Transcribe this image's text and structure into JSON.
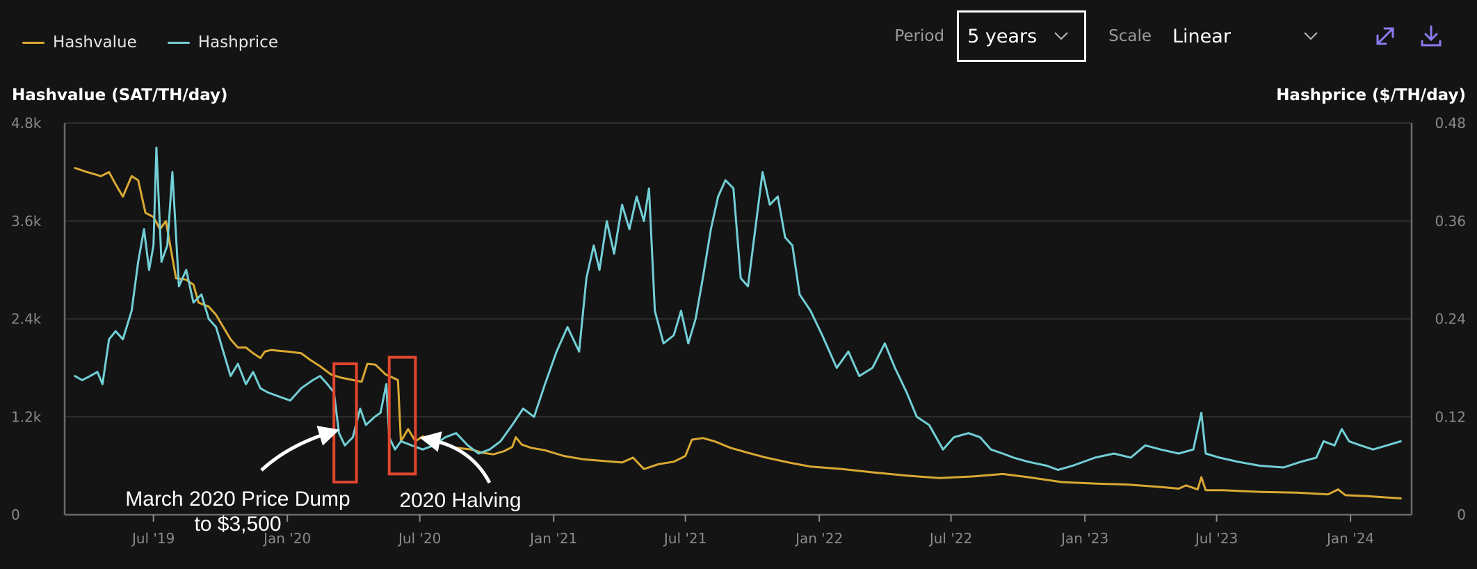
{
  "legend": [
    {
      "label": "Hashvalue",
      "color": "#d9a933"
    },
    {
      "label": "Hashprice",
      "color": "#72cfd6"
    }
  ],
  "controls": {
    "period_label": "Period",
    "period_value": "5 years",
    "scale_label": "Scale",
    "scale_value": "Linear",
    "icons": [
      "chevron-down-icon",
      "expand-icon",
      "download-icon"
    ],
    "accent_color": "#8a7cf0"
  },
  "chart_data": {
    "type": "line",
    "ylabel": "Hashvalue (SAT/TH/day)",
    "y2label": "Hashprice ($/TH/day)",
    "ylim": [
      0,
      4800
    ],
    "y2lim": [
      0,
      0.48
    ],
    "yticks": [
      "0",
      "1.2k",
      "2.4k",
      "3.6k",
      "4.8k"
    ],
    "y2ticks": [
      "0",
      "0.12",
      "0.24",
      "0.36",
      "0.48"
    ],
    "xlim": [
      "2019-03-01",
      "2024-03-25"
    ],
    "xticks": [
      {
        "label": "Jul '19",
        "date": "2019-07-01"
      },
      {
        "label": "Jan '20",
        "date": "2020-01-01"
      },
      {
        "label": "Jul '20",
        "date": "2020-07-01"
      },
      {
        "label": "Jan '21",
        "date": "2021-01-01"
      },
      {
        "label": "Jul '21",
        "date": "2021-07-01"
      },
      {
        "label": "Jan '22",
        "date": "2022-01-01"
      },
      {
        "label": "Jul '22",
        "date": "2022-07-01"
      },
      {
        "label": "Jan '23",
        "date": "2023-01-01"
      },
      {
        "label": "Jul '23",
        "date": "2023-07-01"
      },
      {
        "label": "Jan '24",
        "date": "2024-01-01"
      }
    ],
    "grid": true,
    "legend_position": "top-left",
    "series": [
      {
        "name": "Hashvalue",
        "axis": "left",
        "color": "#d9a933",
        "points": [
          [
            "2019-03-15",
            4250
          ],
          [
            "2019-04-01",
            4200
          ],
          [
            "2019-04-20",
            4150
          ],
          [
            "2019-05-01",
            4200
          ],
          [
            "2019-05-10",
            4050
          ],
          [
            "2019-05-20",
            3900
          ],
          [
            "2019-06-01",
            4150
          ],
          [
            "2019-06-10",
            4100
          ],
          [
            "2019-06-20",
            3700
          ],
          [
            "2019-07-01",
            3650
          ],
          [
            "2019-07-10",
            3500
          ],
          [
            "2019-07-18",
            3600
          ],
          [
            "2019-07-25",
            3250
          ],
          [
            "2019-08-01",
            2900
          ],
          [
            "2019-08-15",
            2880
          ],
          [
            "2019-08-25",
            2820
          ],
          [
            "2019-09-01",
            2600
          ],
          [
            "2019-09-15",
            2550
          ],
          [
            "2019-09-25",
            2450
          ],
          [
            "2019-10-05",
            2300
          ],
          [
            "2019-10-15",
            2150
          ],
          [
            "2019-10-25",
            2050
          ],
          [
            "2019-11-05",
            2050
          ],
          [
            "2019-11-15",
            1980
          ],
          [
            "2019-11-25",
            1920
          ],
          [
            "2019-12-01",
            2000
          ],
          [
            "2019-12-10",
            2020
          ],
          [
            "2019-12-20",
            2010
          ],
          [
            "2020-01-01",
            2000
          ],
          [
            "2020-01-20",
            1980
          ],
          [
            "2020-02-01",
            1900
          ],
          [
            "2020-02-15",
            1820
          ],
          [
            "2020-03-01",
            1720
          ],
          [
            "2020-03-15",
            1680
          ],
          [
            "2020-04-01",
            1650
          ],
          [
            "2020-04-12",
            1630
          ],
          [
            "2020-04-20",
            1850
          ],
          [
            "2020-05-01",
            1840
          ],
          [
            "2020-05-08",
            1780
          ],
          [
            "2020-05-15",
            1720
          ],
          [
            "2020-05-25",
            1680
          ],
          [
            "2020-06-01",
            1650
          ],
          [
            "2020-06-05",
            900
          ],
          [
            "2020-06-15",
            1050
          ],
          [
            "2020-06-25",
            900
          ],
          [
            "2020-07-05",
            960
          ],
          [
            "2020-07-15",
            930
          ],
          [
            "2020-08-01",
            870
          ],
          [
            "2020-08-20",
            820
          ],
          [
            "2020-09-10",
            800
          ],
          [
            "2020-09-25",
            760
          ],
          [
            "2020-10-10",
            740
          ],
          [
            "2020-10-25",
            780
          ],
          [
            "2020-11-05",
            830
          ],
          [
            "2020-11-10",
            950
          ],
          [
            "2020-11-18",
            860
          ],
          [
            "2020-12-01",
            820
          ],
          [
            "2020-12-20",
            790
          ],
          [
            "2021-01-15",
            720
          ],
          [
            "2021-02-10",
            680
          ],
          [
            "2021-03-10",
            660
          ],
          [
            "2021-04-05",
            640
          ],
          [
            "2021-04-20",
            700
          ],
          [
            "2021-05-05",
            560
          ],
          [
            "2021-05-25",
            620
          ],
          [
            "2021-06-15",
            650
          ],
          [
            "2021-07-01",
            720
          ],
          [
            "2021-07-10",
            920
          ],
          [
            "2021-07-25",
            940
          ],
          [
            "2021-08-10",
            900
          ],
          [
            "2021-09-01",
            820
          ],
          [
            "2021-09-25",
            760
          ],
          [
            "2021-10-20",
            700
          ],
          [
            "2021-11-20",
            640
          ],
          [
            "2021-12-20",
            590
          ],
          [
            "2022-02-01",
            560
          ],
          [
            "2022-03-15",
            520
          ],
          [
            "2022-05-01",
            480
          ],
          [
            "2022-06-15",
            450
          ],
          [
            "2022-08-01",
            470
          ],
          [
            "2022-09-10",
            500
          ],
          [
            "2022-10-15",
            460
          ],
          [
            "2022-12-01",
            400
          ],
          [
            "2023-01-20",
            380
          ],
          [
            "2023-03-01",
            370
          ],
          [
            "2023-04-15",
            340
          ],
          [
            "2023-05-10",
            320
          ],
          [
            "2023-05-20",
            360
          ],
          [
            "2023-06-05",
            310
          ],
          [
            "2023-06-10",
            460
          ],
          [
            "2023-06-16",
            300
          ],
          [
            "2023-07-10",
            300
          ],
          [
            "2023-09-01",
            280
          ],
          [
            "2023-10-20",
            270
          ],
          [
            "2023-12-01",
            250
          ],
          [
            "2023-12-15",
            310
          ],
          [
            "2023-12-25",
            240
          ],
          [
            "2024-01-20",
            230
          ],
          [
            "2024-03-10",
            200
          ]
        ]
      },
      {
        "name": "Hashprice",
        "axis": "right",
        "color": "#72cfd6",
        "points": [
          [
            "2019-03-15",
            0.17
          ],
          [
            "2019-03-25",
            0.165
          ],
          [
            "2019-04-05",
            0.17
          ],
          [
            "2019-04-15",
            0.175
          ],
          [
            "2019-04-22",
            0.16
          ],
          [
            "2019-05-01",
            0.215
          ],
          [
            "2019-05-10",
            0.225
          ],
          [
            "2019-05-20",
            0.215
          ],
          [
            "2019-06-01",
            0.25
          ],
          [
            "2019-06-10",
            0.31
          ],
          [
            "2019-06-18",
            0.35
          ],
          [
            "2019-06-25",
            0.3
          ],
          [
            "2019-07-01",
            0.33
          ],
          [
            "2019-07-05",
            0.45
          ],
          [
            "2019-07-12",
            0.31
          ],
          [
            "2019-07-20",
            0.33
          ],
          [
            "2019-07-27",
            0.42
          ],
          [
            "2019-08-05",
            0.28
          ],
          [
            "2019-08-15",
            0.3
          ],
          [
            "2019-08-25",
            0.26
          ],
          [
            "2019-09-05",
            0.27
          ],
          [
            "2019-09-15",
            0.24
          ],
          [
            "2019-09-25",
            0.23
          ],
          [
            "2019-10-05",
            0.2
          ],
          [
            "2019-10-15",
            0.17
          ],
          [
            "2019-10-25",
            0.185
          ],
          [
            "2019-11-05",
            0.16
          ],
          [
            "2019-11-15",
            0.175
          ],
          [
            "2019-11-25",
            0.155
          ],
          [
            "2019-12-05",
            0.15
          ],
          [
            "2019-12-20",
            0.145
          ],
          [
            "2020-01-05",
            0.14
          ],
          [
            "2020-01-20",
            0.155
          ],
          [
            "2020-02-05",
            0.165
          ],
          [
            "2020-02-15",
            0.17
          ],
          [
            "2020-02-25",
            0.16
          ],
          [
            "2020-03-05",
            0.15
          ],
          [
            "2020-03-12",
            0.1
          ],
          [
            "2020-03-20",
            0.085
          ],
          [
            "2020-03-31",
            0.095
          ],
          [
            "2020-04-10",
            0.13
          ],
          [
            "2020-04-18",
            0.11
          ],
          [
            "2020-04-30",
            0.12
          ],
          [
            "2020-05-08",
            0.125
          ],
          [
            "2020-05-16",
            0.16
          ],
          [
            "2020-05-20",
            0.095
          ],
          [
            "2020-05-28",
            0.08
          ],
          [
            "2020-06-05",
            0.09
          ],
          [
            "2020-06-20",
            0.085
          ],
          [
            "2020-07-05",
            0.08
          ],
          [
            "2020-07-20",
            0.085
          ],
          [
            "2020-08-05",
            0.095
          ],
          [
            "2020-08-20",
            0.1
          ],
          [
            "2020-09-05",
            0.085
          ],
          [
            "2020-09-20",
            0.075
          ],
          [
            "2020-10-05",
            0.08
          ],
          [
            "2020-10-20",
            0.09
          ],
          [
            "2020-11-05",
            0.11
          ],
          [
            "2020-11-20",
            0.13
          ],
          [
            "2020-12-05",
            0.12
          ],
          [
            "2020-12-20",
            0.16
          ],
          [
            "2021-01-05",
            0.2
          ],
          [
            "2021-01-20",
            0.23
          ],
          [
            "2021-02-05",
            0.2
          ],
          [
            "2021-02-15",
            0.29
          ],
          [
            "2021-02-25",
            0.33
          ],
          [
            "2021-03-05",
            0.3
          ],
          [
            "2021-03-15",
            0.36
          ],
          [
            "2021-03-25",
            0.32
          ],
          [
            "2021-04-05",
            0.38
          ],
          [
            "2021-04-15",
            0.35
          ],
          [
            "2021-04-25",
            0.39
          ],
          [
            "2021-05-05",
            0.36
          ],
          [
            "2021-05-12",
            0.4
          ],
          [
            "2021-05-20",
            0.25
          ],
          [
            "2021-06-01",
            0.21
          ],
          [
            "2021-06-15",
            0.22
          ],
          [
            "2021-06-25",
            0.25
          ],
          [
            "2021-07-05",
            0.21
          ],
          [
            "2021-07-15",
            0.24
          ],
          [
            "2021-07-25",
            0.29
          ],
          [
            "2021-08-05",
            0.35
          ],
          [
            "2021-08-15",
            0.39
          ],
          [
            "2021-08-25",
            0.41
          ],
          [
            "2021-09-05",
            0.4
          ],
          [
            "2021-09-15",
            0.29
          ],
          [
            "2021-09-25",
            0.28
          ],
          [
            "2021-10-05",
            0.35
          ],
          [
            "2021-10-15",
            0.42
          ],
          [
            "2021-10-25",
            0.38
          ],
          [
            "2021-11-05",
            0.39
          ],
          [
            "2021-11-15",
            0.34
          ],
          [
            "2021-11-25",
            0.33
          ],
          [
            "2021-12-05",
            0.27
          ],
          [
            "2021-12-20",
            0.25
          ],
          [
            "2022-01-05",
            0.22
          ],
          [
            "2022-01-25",
            0.18
          ],
          [
            "2022-02-10",
            0.2
          ],
          [
            "2022-02-25",
            0.17
          ],
          [
            "2022-03-15",
            0.18
          ],
          [
            "2022-04-01",
            0.21
          ],
          [
            "2022-04-15",
            0.18
          ],
          [
            "2022-05-01",
            0.15
          ],
          [
            "2022-05-15",
            0.12
          ],
          [
            "2022-06-01",
            0.11
          ],
          [
            "2022-06-20",
            0.08
          ],
          [
            "2022-07-05",
            0.095
          ],
          [
            "2022-07-25",
            0.1
          ],
          [
            "2022-08-10",
            0.095
          ],
          [
            "2022-08-25",
            0.08
          ],
          [
            "2022-09-10",
            0.075
          ],
          [
            "2022-09-25",
            0.07
          ],
          [
            "2022-10-15",
            0.065
          ],
          [
            "2022-11-10",
            0.06
          ],
          [
            "2022-11-25",
            0.055
          ],
          [
            "2022-12-15",
            0.06
          ],
          [
            "2023-01-15",
            0.07
          ],
          [
            "2023-02-10",
            0.075
          ],
          [
            "2023-03-05",
            0.07
          ],
          [
            "2023-03-25",
            0.085
          ],
          [
            "2023-04-15",
            0.08
          ],
          [
            "2023-05-10",
            0.075
          ],
          [
            "2023-05-30",
            0.08
          ],
          [
            "2023-06-10",
            0.125
          ],
          [
            "2023-06-16",
            0.075
          ],
          [
            "2023-07-05",
            0.07
          ],
          [
            "2023-07-30",
            0.065
          ],
          [
            "2023-08-30",
            0.06
          ],
          [
            "2023-10-01",
            0.058
          ],
          [
            "2023-10-25",
            0.065
          ],
          [
            "2023-11-15",
            0.07
          ],
          [
            "2023-11-25",
            0.09
          ],
          [
            "2023-12-10",
            0.085
          ],
          [
            "2023-12-20",
            0.105
          ],
          [
            "2023-12-30",
            0.09
          ],
          [
            "2024-01-15",
            0.085
          ],
          [
            "2024-02-01",
            0.08
          ],
          [
            "2024-02-20",
            0.085
          ],
          [
            "2024-03-10",
            0.09
          ]
        ]
      }
    ],
    "annotations": [
      {
        "text": "March 2020 Price Dump",
        "text2": "to $3,500",
        "box": [
          "2020-03-05",
          "2020-04-05"
        ],
        "value_range": [
          400,
          1850
        ]
      },
      {
        "text": "2020 Halving",
        "box": [
          "2020-05-20",
          "2020-06-25"
        ],
        "value_range": [
          500,
          1930
        ]
      }
    ],
    "highlight_color": "#e0462e"
  }
}
